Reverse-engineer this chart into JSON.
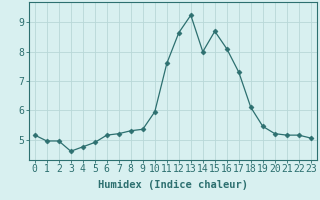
{
  "x_values": [
    0,
    1,
    2,
    3,
    4,
    5,
    6,
    7,
    8,
    9,
    10,
    11,
    12,
    13,
    14,
    15,
    16,
    17,
    18,
    19,
    20,
    21,
    22,
    23
  ],
  "y_values": [
    5.15,
    4.95,
    4.95,
    4.6,
    4.75,
    4.9,
    5.15,
    5.2,
    5.3,
    5.35,
    5.95,
    7.6,
    8.65,
    9.25,
    8.0,
    8.7,
    8.1,
    7.3,
    6.1,
    5.45,
    5.2,
    5.15,
    5.15,
    5.05
  ],
  "line_color": "#2d7070",
  "marker": "D",
  "marker_size": 2.5,
  "bg_color": "#d8f0f0",
  "grid_color": "#b8d8d8",
  "tick_color": "#2d7070",
  "label_color": "#2d7070",
  "xlabel": "Humidex (Indice chaleur)",
  "xlabel_fontsize": 7.5,
  "ylabel_ticks": [
    5,
    6,
    7,
    8,
    9
  ],
  "xlim": [
    -0.5,
    23.5
  ],
  "ylim": [
    4.3,
    9.7
  ],
  "tick_fontsize": 7
}
